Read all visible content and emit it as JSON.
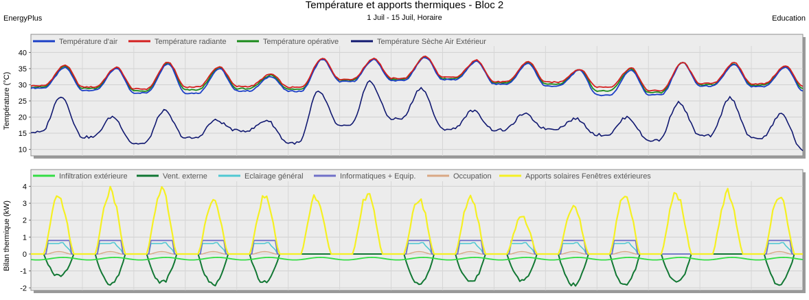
{
  "header": {
    "title": "Température et apports thermiques - Bloc 2",
    "subtitle": "1 Juil - 15 Juil, Horaire",
    "left": "EnergyPlus",
    "right": "Education"
  },
  "chart_data": [
    {
      "type": "line",
      "ylabel": "Température (°C)",
      "ylim": [
        8,
        42
      ],
      "yticks": [
        10,
        15,
        20,
        25,
        30,
        35,
        40
      ],
      "x_unit": "day",
      "xlim": [
        0,
        15
      ],
      "grid": true,
      "legend_position": "top",
      "series": [
        {
          "name": "Température d'air",
          "color": "#1b3fc6",
          "min": [
            29.0,
            28.3,
            27.5,
            27.4,
            28.1,
            28.0,
            31.0,
            31.3,
            31.6,
            30.2,
            29.6,
            26.8,
            26.9,
            29.6,
            29.4,
            28.1
          ],
          "max": [
            35.3,
            35.0,
            36.6,
            35.0,
            32.6,
            37.9,
            37.8,
            38.5,
            37.2,
            36.6,
            34.5,
            34.6,
            36.9,
            36.2,
            35.4,
            37.5
          ]
        },
        {
          "name": "Température radiante",
          "color": "#d42020",
          "min": [
            29.7,
            29.3,
            28.7,
            29.3,
            29.5,
            29.2,
            31.7,
            32.0,
            32.3,
            30.9,
            30.8,
            29.3,
            28.2,
            30.4,
            30.3,
            29.6
          ],
          "max": [
            36.1,
            35.4,
            37.0,
            35.6,
            33.3,
            38.3,
            38.2,
            38.8,
            37.6,
            37.2,
            34.8,
            35.2,
            36.9,
            36.8,
            35.8,
            37.6
          ]
        },
        {
          "name": "Température opérative",
          "color": "#1a8a1a",
          "min": [
            29.3,
            28.9,
            28.1,
            28.4,
            28.8,
            28.6,
            31.4,
            31.7,
            31.9,
            30.6,
            30.2,
            28.1,
            27.6,
            30.0,
            29.9,
            28.8
          ],
          "max": [
            35.7,
            35.2,
            36.8,
            35.3,
            33.0,
            38.1,
            38.0,
            38.7,
            37.4,
            36.9,
            34.7,
            34.9,
            36.9,
            36.5,
            35.6,
            37.6
          ]
        },
        {
          "name": "Température Sèche Air Extérieur",
          "color": "#101870",
          "min": [
            15.3,
            13.8,
            11.8,
            13.5,
            15.8,
            12.0,
            17.2,
            19.5,
            16.3,
            16.0,
            16.4,
            14.5,
            12.8,
            14.2,
            13.5,
            9.5
          ],
          "max": [
            26.5,
            20.1,
            22.0,
            19.0,
            19.0,
            28.0,
            31.0,
            29.0,
            22.0,
            21.0,
            19.5,
            20.0,
            24.5,
            26.0,
            21.0,
            24.0
          ]
        }
      ]
    },
    {
      "type": "line",
      "ylabel": "Bilan thermique (kW)",
      "ylim": [
        -2.15,
        4.3
      ],
      "yticks": [
        -2,
        -1,
        0,
        1,
        2,
        3,
        4
      ],
      "x_unit": "day",
      "xlim": [
        0,
        15
      ],
      "grid": true,
      "legend_position": "top",
      "days": [
        1,
        2,
        3,
        4,
        5,
        6,
        7,
        8,
        9,
        10,
        11,
        12,
        13,
        14,
        15
      ],
      "occupied": [
        1,
        1,
        1,
        1,
        1,
        0,
        0,
        1,
        1,
        1,
        1,
        1,
        0,
        0,
        1
      ],
      "series": [
        {
          "name": "Infiltration extérieure",
          "color": "#33dd44",
          "value_range": [
            -0.35,
            -0.2
          ]
        },
        {
          "name": "Vent. externe",
          "color": "#117733",
          "daily_min": [
            -1.3,
            -1.8,
            -1.7,
            -1.8,
            -1.7,
            0,
            0,
            -1.8,
            -1.7,
            -1.6,
            -1.8,
            -1.8,
            -1.7,
            0,
            -1.8
          ]
        },
        {
          "name": "Eclairage général",
          "color": "#4fc8d2",
          "value": 0.62
        },
        {
          "name": "Informatiques + Equip.",
          "color": "#7070c8",
          "value": 0.8
        },
        {
          "name": "Occupation",
          "color": "#d9a784",
          "value": 0.14
        },
        {
          "name": "Apports solaires Fenêtres extérieures",
          "color": "#f5f022",
          "daily_max": [
            3.4,
            3.75,
            3.7,
            3.05,
            3.35,
            3.4,
            3.55,
            3.25,
            3.3,
            2.2,
            2.75,
            3.5,
            3.55,
            3.65,
            3.5
          ]
        }
      ]
    }
  ]
}
